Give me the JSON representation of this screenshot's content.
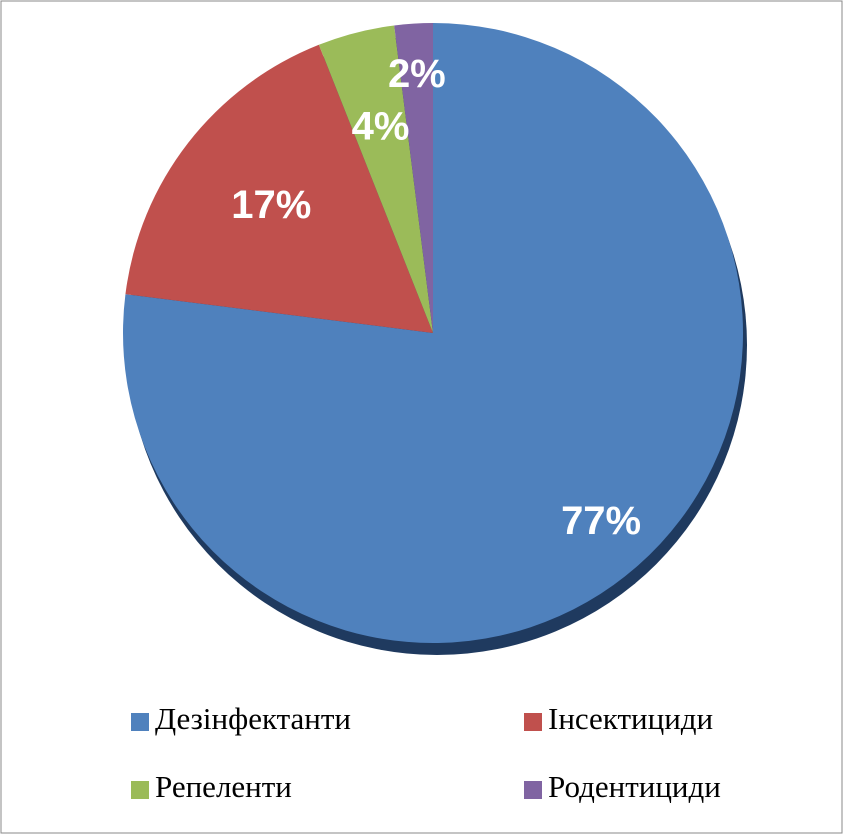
{
  "chart_data": {
    "type": "pie",
    "categories": [
      "Дезінфектанти",
      "Інсектициди",
      "Репеленти",
      "Родентициди"
    ],
    "values": [
      77,
      17,
      4,
      2
    ],
    "value_labels": [
      "77%",
      "17%",
      "4%",
      "2%"
    ],
    "colors": [
      "#4f81bd",
      "#c0504d",
      "#9bbb59",
      "#8064a2"
    ]
  }
}
